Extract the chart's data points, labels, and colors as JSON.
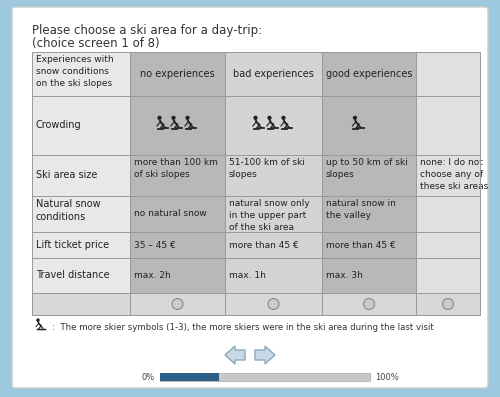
{
  "bg_color": "#9ec8de",
  "white": "#ffffff",
  "title1": "Please choose a ski area for a day-trip:",
  "title2": "(choice screen 1 of 8)",
  "col_headers": [
    "no experiences",
    "bad experiences",
    "good experiences",
    ""
  ],
  "footnote": ":  The more skier symbols (1-3), the more skiers were in the ski area during the last visit",
  "progress_pct": 0.28,
  "col1_bg": "#b8b8b8",
  "col2_bg": "#d4d4d4",
  "col3_bg": "#b8b8b8",
  "col4_bg": "#e0e0e0",
  "row_label_bg": "#e8e8e8",
  "radio_row_bg": "#e0e0e0",
  "table_border": "#999999",
  "progress_fill": "#2a5f8a",
  "progress_bg": "#c8c8c8",
  "arrow_fill": "#c8d8e4",
  "arrow_edge": "#8aaabb"
}
